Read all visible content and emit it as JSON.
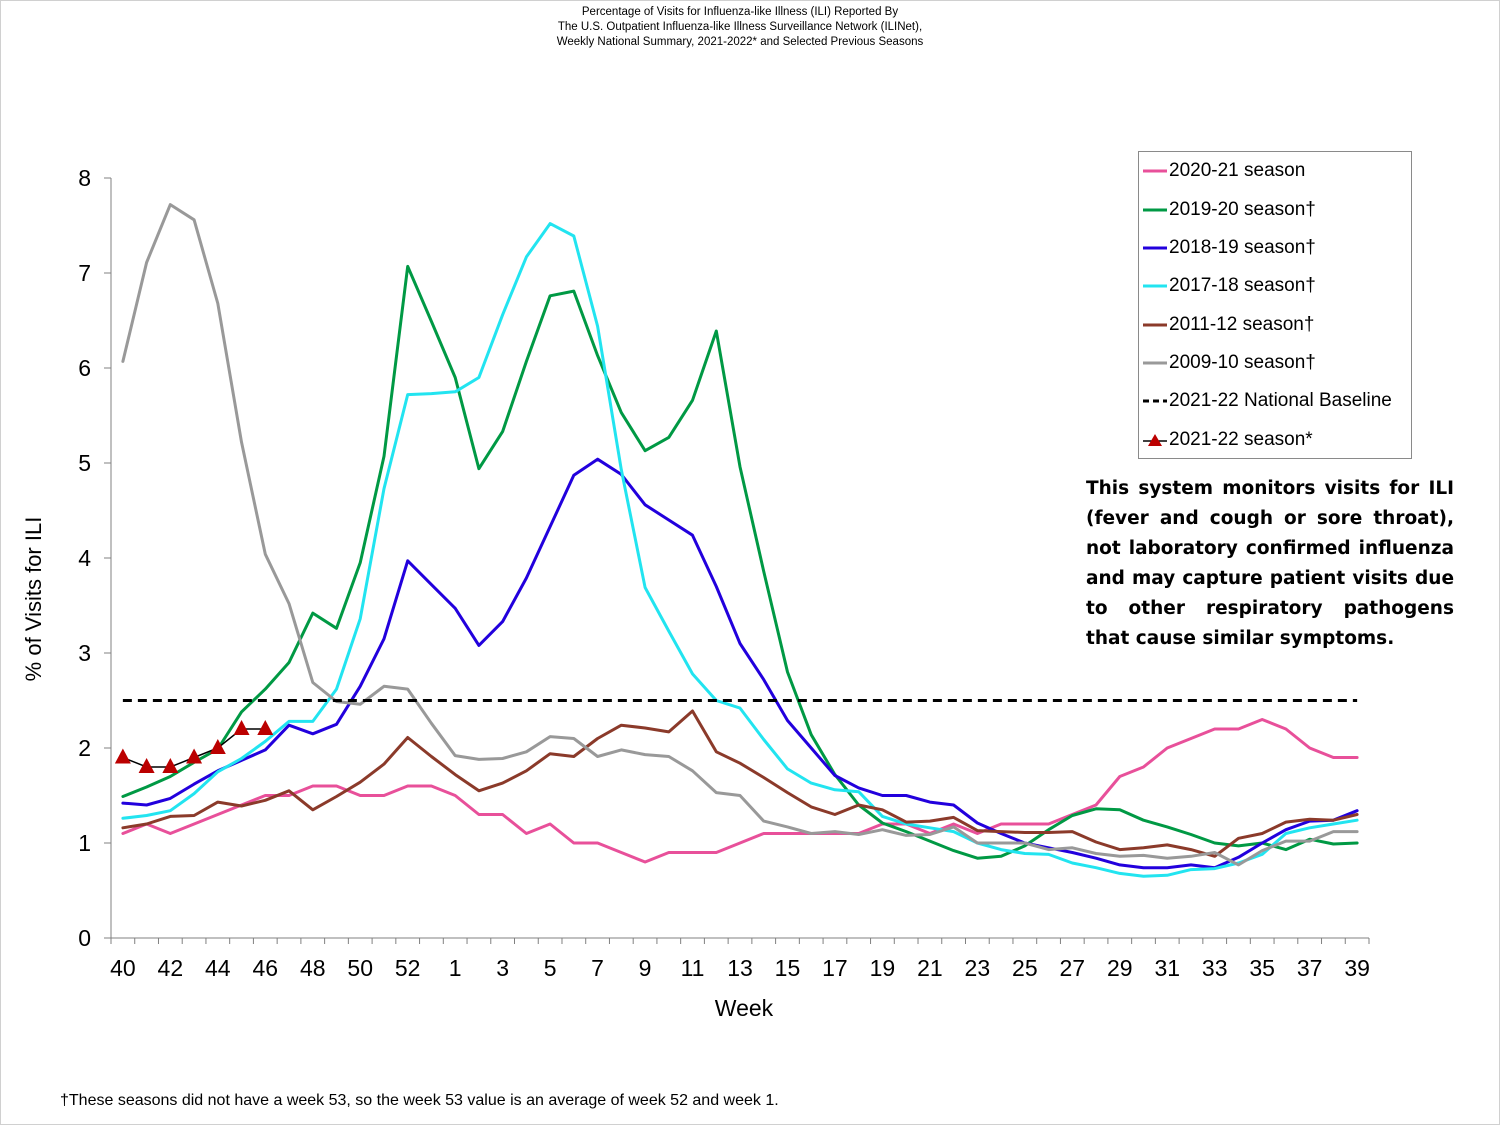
{
  "title_lines": [
    "Percentage of Visits for Influenza-like Illness (ILI) Reported By",
    "The U.S. Outpatient Influenza-like Illness Surveillance Network (ILINet),",
    "Weekly National Summary, 2021-2022* and Selected Previous Seasons"
  ],
  "note": "This system monitors visits for ILI (fever and cough or sore throat), not laboratory confirmed influenza and may capture patient visits due to other respiratory pathogens that cause similar symptoms.",
  "footnote": "†These seasons did not have a week 53, so the week 53 value is an average of week 52 and week 1.",
  "colors": {
    "s2020": "#e8509a",
    "s2019": "#009944",
    "s2018": "#2200dd",
    "s2017": "#22e4f0",
    "s2011": "#8b3a2a",
    "s2009": "#999999",
    "baseline": "#000000",
    "s2021": "#bb0000"
  },
  "chart_data": {
    "type": "line",
    "title": "Percentage of Visits for Influenza-like Illness (ILI) Reported By The U.S. Outpatient Influenza-like Illness Surveillance Network (ILINet), Weekly National Summary, 2021-2022* and Selected Previous Seasons",
    "xlabel": "Week",
    "ylabel": "% of Visits for ILI",
    "ylim": [
      0,
      8
    ],
    "yticks": [
      "0",
      "1",
      "2",
      "3",
      "4",
      "5",
      "6",
      "7",
      "8"
    ],
    "x_weeks": [
      40,
      41,
      42,
      43,
      44,
      45,
      46,
      47,
      48,
      49,
      50,
      51,
      52,
      53,
      1,
      2,
      3,
      4,
      5,
      6,
      7,
      8,
      9,
      10,
      11,
      12,
      13,
      14,
      15,
      16,
      17,
      18,
      19,
      20,
      21,
      22,
      23,
      24,
      25,
      26,
      27,
      28,
      29,
      30,
      31,
      32,
      33,
      34,
      35,
      36,
      37,
      38,
      39
    ],
    "xtick_labels": [
      "40",
      "42",
      "44",
      "46",
      "48",
      "50",
      "52",
      "1",
      "3",
      "5",
      "7",
      "9",
      "11",
      "13",
      "15",
      "17",
      "19",
      "21",
      "23",
      "25",
      "27",
      "29",
      "31",
      "33",
      "35",
      "37",
      "39"
    ],
    "series": [
      {
        "name": "2020-21 season",
        "color_key": "s2020",
        "style": "solid",
        "values": [
          1.1,
          1.2,
          1.1,
          1.2,
          1.3,
          1.4,
          1.5,
          1.5,
          1.6,
          1.6,
          1.5,
          1.5,
          1.6,
          1.6,
          1.5,
          1.3,
          1.3,
          1.1,
          1.2,
          1.0,
          1.0,
          0.9,
          0.8,
          0.9,
          0.9,
          0.9,
          1.0,
          1.1,
          1.1,
          1.1,
          1.1,
          1.1,
          1.2,
          1.2,
          1.1,
          1.2,
          1.1,
          1.2,
          1.2,
          1.2,
          1.3,
          1.4,
          1.7,
          1.8,
          2.0,
          2.1,
          2.2,
          2.2,
          2.3,
          2.2,
          2.0,
          1.9,
          1.9
        ]
      },
      {
        "name": "2019-20 season†",
        "color_key": "s2019",
        "style": "solid",
        "values": [
          1.49,
          1.59,
          1.7,
          1.85,
          1.99,
          2.38,
          2.62,
          2.9,
          3.42,
          3.26,
          3.95,
          5.07,
          7.07,
          6.49,
          5.9,
          4.94,
          5.33,
          6.07,
          6.76,
          6.81,
          6.13,
          5.53,
          5.13,
          5.27,
          5.66,
          6.39,
          4.96,
          3.86,
          2.8,
          2.14,
          1.72,
          1.4,
          1.21,
          1.12,
          1.02,
          0.92,
          0.84,
          0.86,
          0.97,
          1.14,
          1.29,
          1.36,
          1.35,
          1.24,
          1.17,
          1.09,
          1.0,
          0.97,
          1.0,
          0.93,
          1.04,
          0.99,
          1.0
        ]
      },
      {
        "name": "2018-19 season†",
        "color_key": "s2018",
        "style": "solid",
        "values": [
          1.42,
          1.4,
          1.47,
          1.62,
          1.76,
          1.87,
          1.98,
          2.24,
          2.15,
          2.25,
          2.65,
          3.15,
          3.97,
          3.72,
          3.47,
          3.08,
          3.33,
          3.79,
          4.33,
          4.87,
          5.04,
          4.88,
          4.56,
          4.4,
          4.24,
          3.7,
          3.1,
          2.72,
          2.29,
          2.0,
          1.71,
          1.58,
          1.5,
          1.5,
          1.43,
          1.4,
          1.21,
          1.1,
          1.0,
          0.95,
          0.9,
          0.84,
          0.77,
          0.74,
          0.74,
          0.77,
          0.74,
          0.85,
          1.0,
          1.14,
          1.23,
          1.24,
          1.34
        ]
      },
      {
        "name": "2017-18 season†",
        "color_key": "s2017",
        "style": "solid",
        "values": [
          1.26,
          1.29,
          1.34,
          1.52,
          1.75,
          1.89,
          2.07,
          2.28,
          2.28,
          2.62,
          3.36,
          4.73,
          5.72,
          5.73,
          5.75,
          5.9,
          6.56,
          7.17,
          7.52,
          7.39,
          6.44,
          4.93,
          3.69,
          3.23,
          2.78,
          2.5,
          2.42,
          2.09,
          1.78,
          1.63,
          1.56,
          1.54,
          1.28,
          1.2,
          1.16,
          1.12,
          1.0,
          0.93,
          0.89,
          0.88,
          0.79,
          0.74,
          0.68,
          0.65,
          0.66,
          0.72,
          0.73,
          0.79,
          0.88,
          1.1,
          1.16,
          1.2,
          1.24
        ]
      },
      {
        "name": "2011-12 season†",
        "color_key": "s2011",
        "style": "solid",
        "values": [
          1.16,
          1.2,
          1.28,
          1.29,
          1.43,
          1.39,
          1.45,
          1.55,
          1.35,
          1.49,
          1.64,
          1.83,
          2.11,
          1.91,
          1.72,
          1.55,
          1.63,
          1.76,
          1.94,
          1.91,
          2.1,
          2.24,
          2.21,
          2.17,
          2.39,
          1.96,
          1.84,
          1.69,
          1.53,
          1.38,
          1.3,
          1.4,
          1.35,
          1.22,
          1.23,
          1.27,
          1.13,
          1.12,
          1.11,
          1.11,
          1.12,
          1.01,
          0.93,
          0.95,
          0.98,
          0.93,
          0.86,
          1.05,
          1.1,
          1.22,
          1.25,
          1.24,
          1.3
        ]
      },
      {
        "name": "2009-10 season†",
        "color_key": "s2009",
        "style": "solid",
        "values": [
          6.07,
          7.11,
          7.72,
          7.56,
          6.68,
          5.22,
          4.04,
          3.52,
          2.69,
          2.49,
          2.46,
          2.65,
          2.62,
          2.26,
          1.92,
          1.88,
          1.89,
          1.96,
          2.12,
          2.1,
          1.91,
          1.98,
          1.93,
          1.91,
          1.76,
          1.53,
          1.5,
          1.23,
          1.17,
          1.1,
          1.12,
          1.09,
          1.14,
          1.08,
          1.09,
          1.17,
          1.0,
          1.0,
          1.0,
          0.93,
          0.95,
          0.89,
          0.86,
          0.87,
          0.84,
          0.86,
          0.9,
          0.77,
          0.92,
          1.02,
          1.02,
          1.12,
          1.12
        ]
      },
      {
        "name": "2021-22 National Baseline",
        "color_key": "baseline",
        "style": "dashed",
        "value": 2.5
      },
      {
        "name": "2021-22 season*",
        "color_key": "s2021",
        "style": "triangle",
        "values": [
          1.9,
          1.8,
          1.8,
          1.9,
          2.0,
          2.2,
          2.2
        ]
      }
    ]
  }
}
